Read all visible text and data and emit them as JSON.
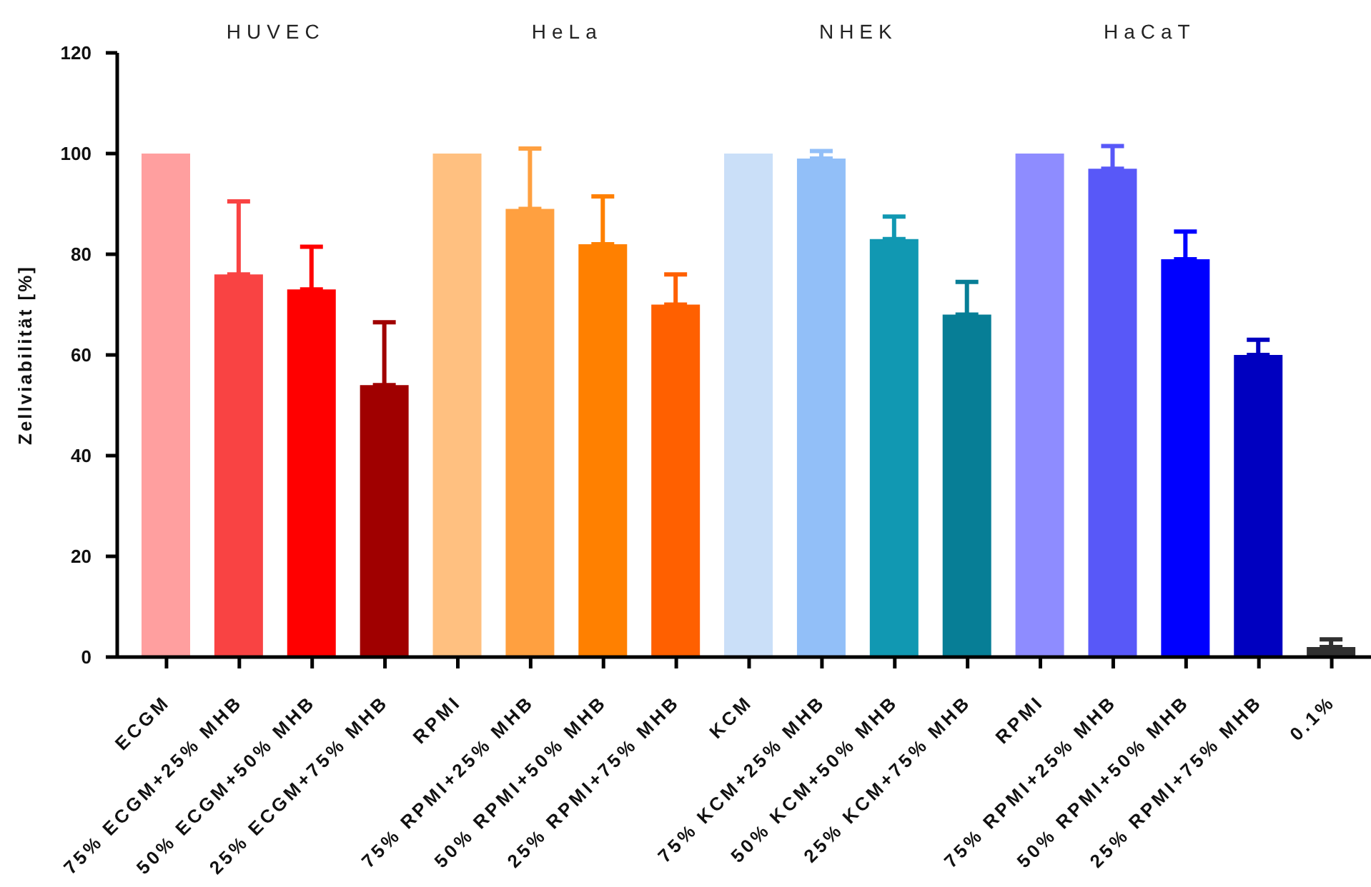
{
  "chart_data": {
    "type": "bar",
    "ylabel": "Zellviabilität [%]",
    "annotations": [
      "HUVEC",
      "HeLa",
      "NHEK",
      "HaCaT"
    ],
    "categories": [
      "ECGM",
      "75% ECGM+25% MHB",
      "50% ECGM+50% MHB",
      "25% ECGM+75% MHB",
      "RPMI",
      "75% RPMI+25% MHB",
      "50% RPMI+50% MHB",
      "25% RPMI+75% MHB",
      "KCM",
      "75% KCM+25% MHB",
      "50% KCM+50% MHB",
      "25% KCM+75% MHB",
      "RPMI",
      "75% RPMI+25% MHB",
      "50% RPMI+50% MHB",
      "25% RPMI+75% MHB",
      "0.1%"
    ],
    "values": [
      100,
      76,
      73,
      54,
      100,
      89,
      82,
      70,
      100,
      99,
      83,
      68,
      100,
      97,
      79,
      60,
      2
    ],
    "colors": [
      "#ff9f9f",
      "#f94343",
      "#ff0000",
      "#a00000",
      "#ffc080",
      "#ffa040",
      "#ff8000",
      "#ff6000",
      "#cadff8",
      "#92bff8",
      "#1198b2",
      "#077e96",
      "#8e8cff",
      "#5858f8",
      "#0000ff",
      "#0000c0",
      "#303030"
    ],
    "errors": [
      null,
      [
        76,
        90.5
      ],
      [
        73,
        81.5
      ],
      [
        54,
        66.5
      ],
      null,
      [
        89,
        101
      ],
      [
        82,
        91.5
      ],
      [
        70,
        76
      ],
      null,
      [
        99,
        100.5
      ],
      [
        83,
        87.5
      ],
      [
        68,
        74.5
      ],
      null,
      [
        97,
        101.5
      ],
      [
        79,
        84.5
      ],
      [
        60,
        63
      ],
      [
        2,
        3.5
      ]
    ],
    "ylim": [
      0,
      120
    ],
    "yticks": [
      0,
      20,
      40,
      60,
      80,
      100,
      120
    ],
    "grid": false,
    "legend": false
  }
}
